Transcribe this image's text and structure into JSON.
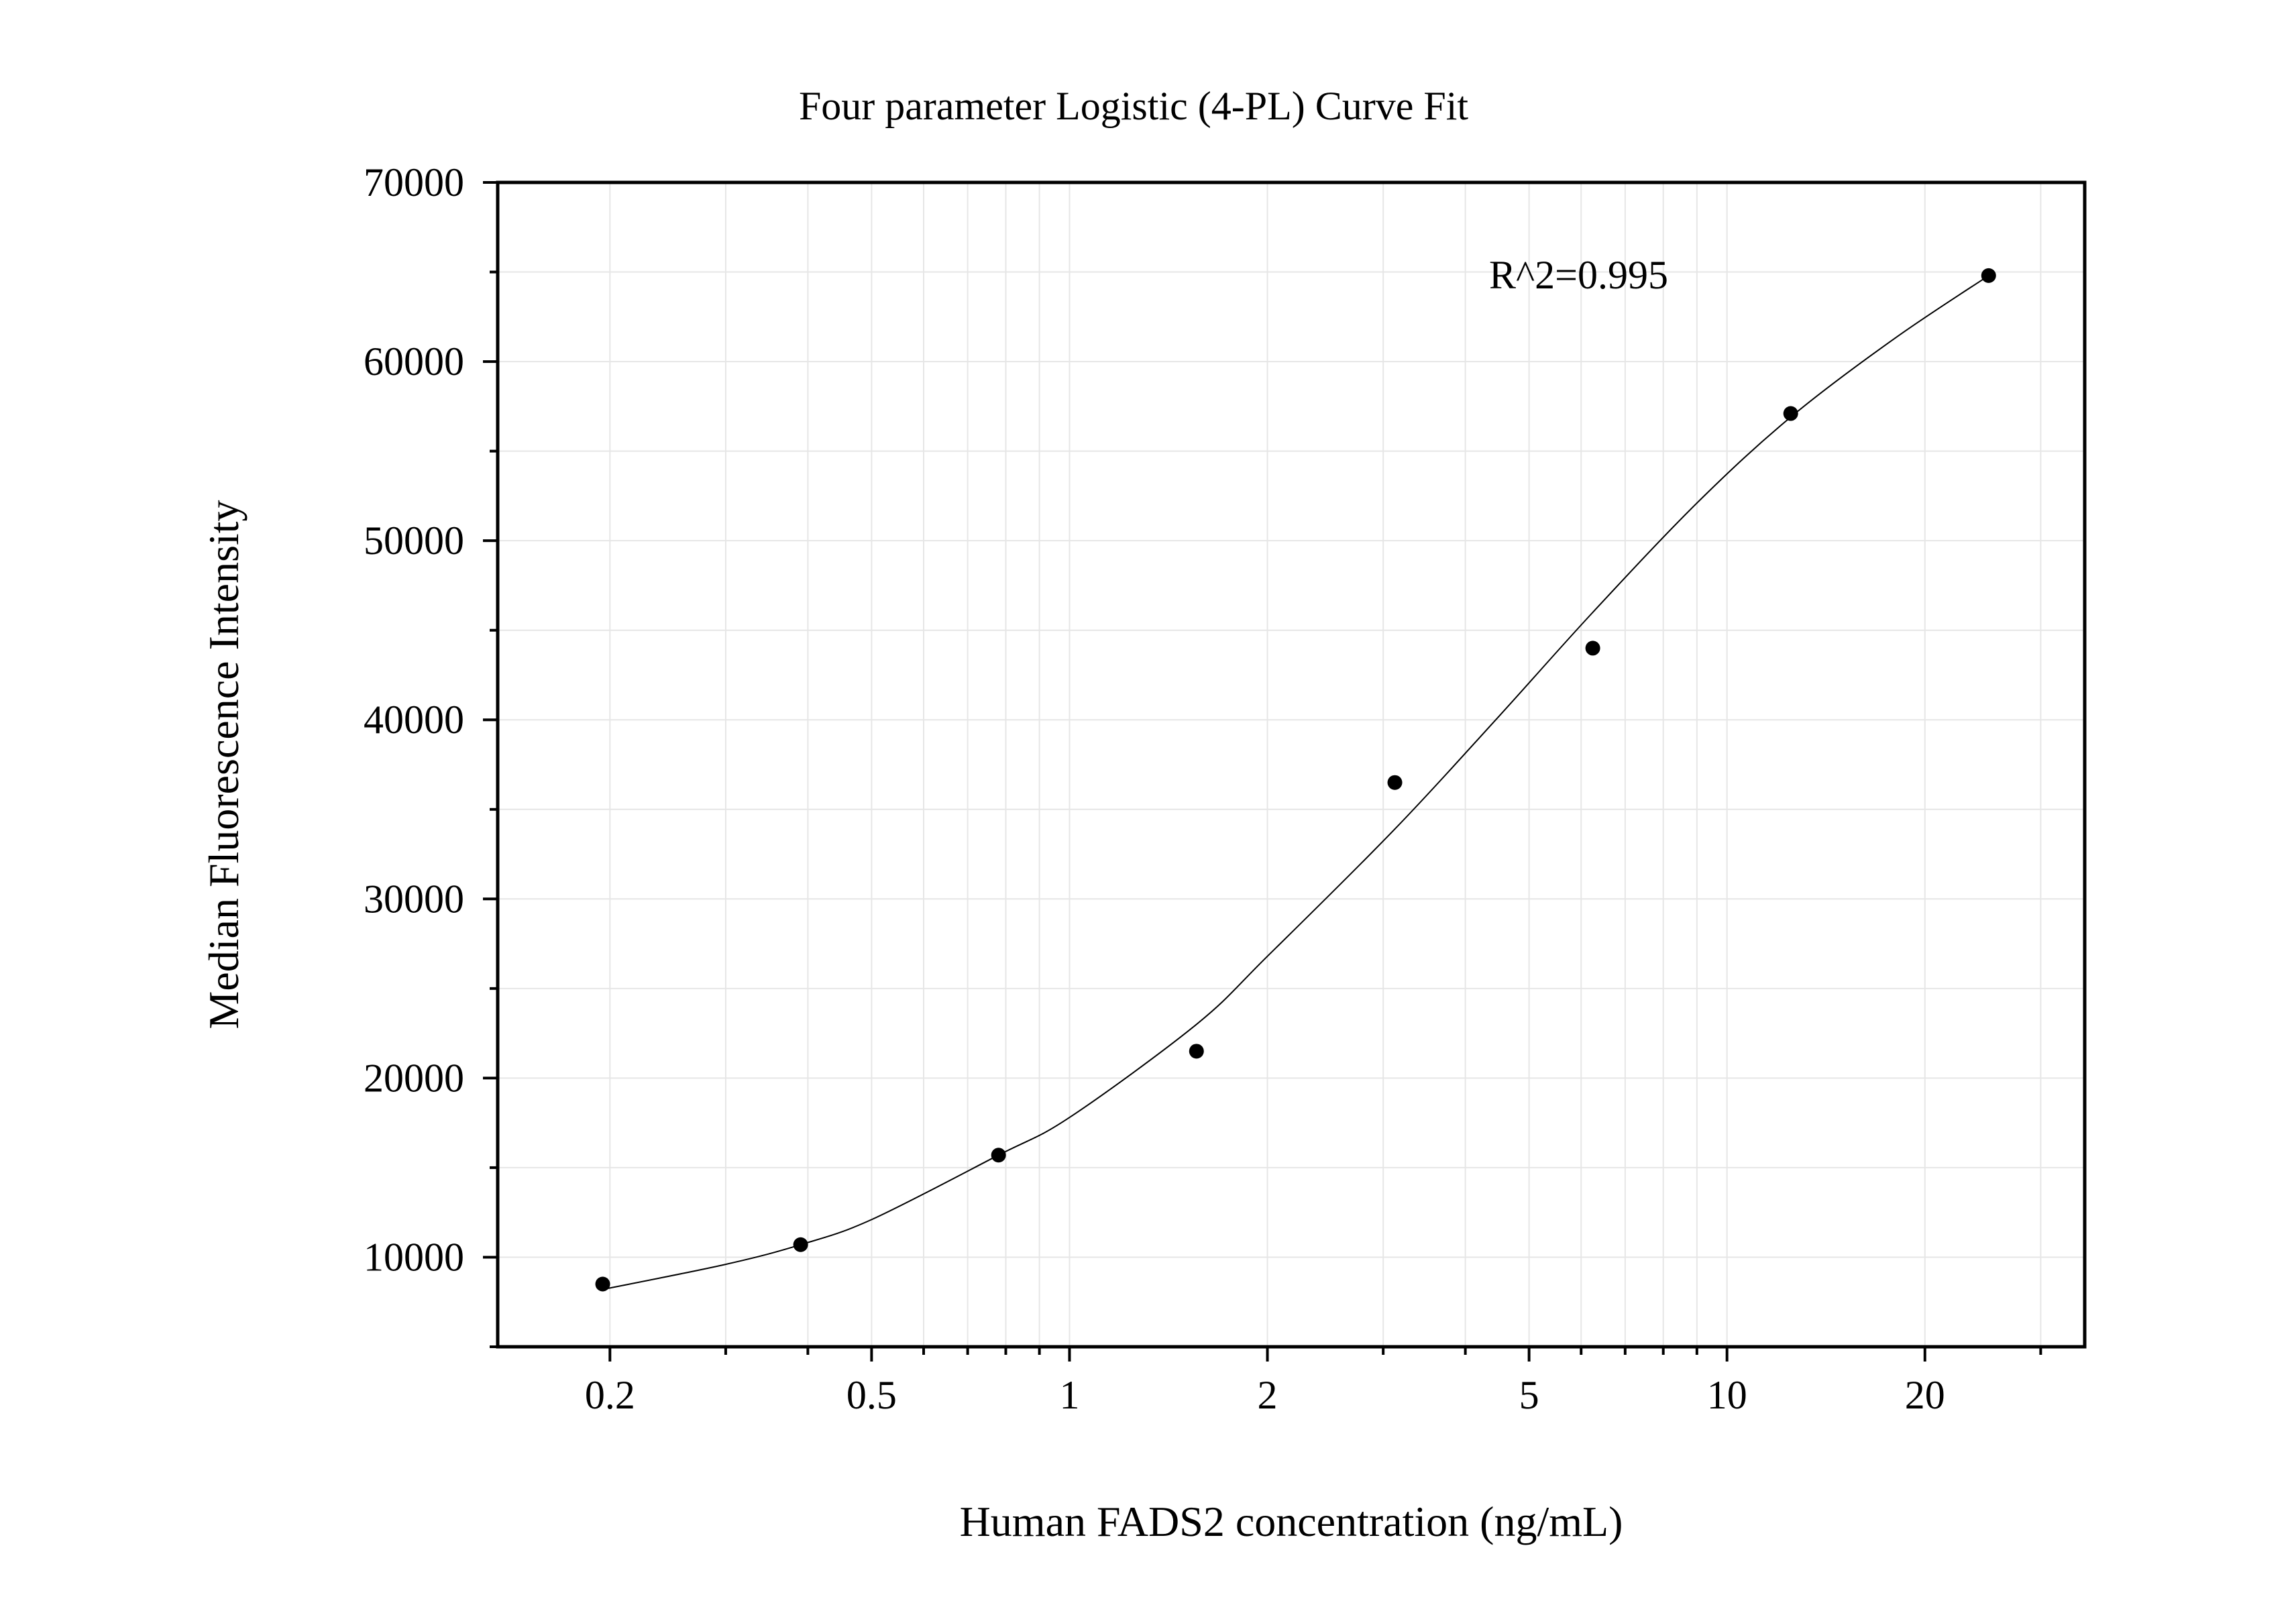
{
  "chart_data": {
    "type": "scatter",
    "title": "Four parameter Logistic (4-PL) Curve Fit",
    "xlabel": "Human FADS2 concentration (ng/mL)",
    "ylabel": "Median Fluorescence Intensity",
    "x_scale": "log",
    "xlim": [
      0.135,
      35
    ],
    "ylim": [
      5000,
      70000
    ],
    "x_ticks": [
      0.2,
      0.5,
      1,
      2,
      5,
      10,
      20
    ],
    "x_tick_labels": [
      "0.2",
      "0.5",
      "1",
      "2",
      "5",
      "10",
      "20"
    ],
    "y_ticks": [
      10000,
      20000,
      30000,
      40000,
      50000,
      60000,
      70000
    ],
    "y_tick_labels": [
      "10000",
      "20000",
      "30000",
      "40000",
      "50000",
      "60000",
      "70000"
    ],
    "grid": true,
    "annotation": "R^2=0.995",
    "points": {
      "x": [
        0.195,
        0.39,
        0.78,
        1.56,
        3.125,
        6.25,
        12.5,
        25
      ],
      "y": [
        8500,
        10700,
        15700,
        21500,
        36500,
        44000,
        57100,
        64800
      ]
    },
    "fit_curve": {
      "x": [
        0.195,
        0.3,
        0.39,
        0.5,
        0.78,
        1,
        1.56,
        2,
        3.125,
        4.5,
        6.25,
        9,
        12.5,
        18,
        25
      ],
      "y": [
        8200,
        9600,
        10700,
        12100,
        15700,
        17800,
        23000,
        26800,
        33900,
        40200,
        46000,
        52100,
        56900,
        61300,
        64800
      ]
    },
    "colors": {
      "points": "#000000",
      "curve": "#000000",
      "grid": "#e6e6e6",
      "axes": "#000000"
    }
  }
}
